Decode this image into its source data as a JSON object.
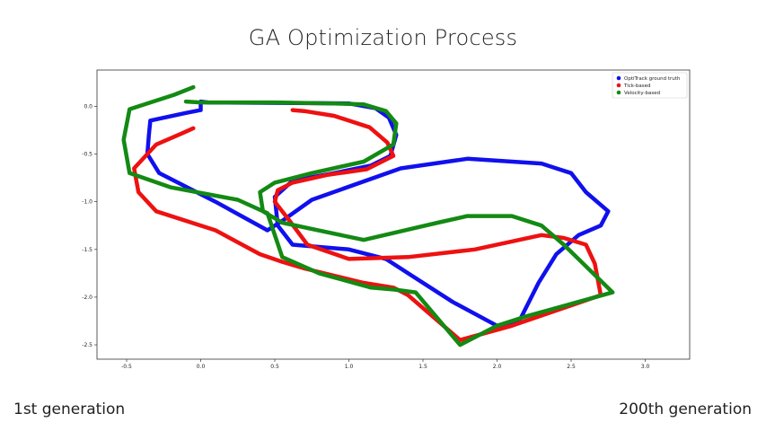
{
  "page": {
    "title": "GA Optimization Process",
    "left_caption": "1st generation",
    "right_caption": "200th generation"
  },
  "chart_data": {
    "type": "line",
    "title": "",
    "xlabel": "",
    "ylabel": "",
    "xlim": [
      -0.7,
      3.3
    ],
    "ylim": [
      -2.65,
      0.38
    ],
    "xticks": [
      -0.5,
      0.0,
      0.5,
      1.0,
      1.5,
      2.0,
      2.5,
      3.0
    ],
    "yticks": [
      0.0,
      -0.5,
      -1.0,
      -1.5,
      -2.0,
      -2.5
    ],
    "grid": false,
    "legend_position": "top-right",
    "series": [
      {
        "name": "OptiTrack ground truth",
        "color": "#1010ee",
        "x": [
          0.0,
          0.05,
          1.0,
          1.18,
          1.27,
          1.32,
          1.28,
          1.15,
          0.9,
          0.62,
          0.5,
          0.52,
          0.62,
          1.0,
          1.25,
          1.4,
          1.7,
          2.0,
          2.15,
          2.28,
          2.4,
          2.55,
          2.7,
          2.75,
          2.6,
          2.5,
          2.4,
          2.3,
          1.8,
          1.35,
          0.75,
          0.55,
          0.45,
          0.1,
          -0.28,
          -0.36,
          -0.35,
          -0.34,
          -0.1,
          0.0,
          0.0
        ],
        "y": [
          0.05,
          0.04,
          0.03,
          -0.02,
          -0.12,
          -0.3,
          -0.52,
          -0.62,
          -0.7,
          -0.78,
          -0.95,
          -1.25,
          -1.45,
          -1.5,
          -1.6,
          -1.75,
          -2.05,
          -2.3,
          -2.25,
          -1.85,
          -1.55,
          -1.35,
          -1.25,
          -1.1,
          -0.9,
          -0.7,
          -0.65,
          -0.6,
          -0.55,
          -0.65,
          -0.98,
          -1.2,
          -1.3,
          -1.0,
          -0.7,
          -0.5,
          -0.3,
          -0.15,
          -0.07,
          -0.04,
          0.05
        ]
      },
      {
        "name": "Tick-based",
        "color": "#ee1111",
        "x": [
          -0.05,
          -0.12,
          -0.3,
          -0.45,
          -0.42,
          -0.3,
          0.1,
          0.4,
          0.55,
          0.7,
          1.1,
          1.3,
          1.4,
          1.75,
          2.1,
          2.7,
          2.66,
          2.6,
          2.45,
          2.3,
          1.85,
          1.4,
          1.0,
          0.72,
          0.6,
          0.5,
          0.52,
          0.62,
          0.85,
          1.12,
          1.3,
          1.26,
          1.14,
          0.9,
          0.7,
          0.62
        ],
        "y": [
          -0.23,
          -0.28,
          -0.4,
          -0.65,
          -0.9,
          -1.1,
          -1.3,
          -1.55,
          -1.63,
          -1.7,
          -1.85,
          -1.9,
          -1.98,
          -2.45,
          -2.3,
          -1.98,
          -1.65,
          -1.45,
          -1.38,
          -1.35,
          -1.5,
          -1.58,
          -1.6,
          -1.45,
          -1.2,
          -1.0,
          -0.88,
          -0.8,
          -0.72,
          -0.66,
          -0.52,
          -0.38,
          -0.22,
          -0.1,
          -0.05,
          -0.04
        ]
      },
      {
        "name": "Velocity-based",
        "color": "#138a13",
        "x": [
          -0.05,
          -0.18,
          -0.48,
          -0.52,
          -0.48,
          -0.2,
          0.25,
          0.45,
          0.55,
          0.8,
          1.15,
          1.3,
          1.45,
          1.75,
          2.0,
          2.2,
          2.78,
          2.45,
          2.3,
          2.1,
          1.8,
          1.6,
          1.1,
          0.55,
          0.42,
          0.4,
          0.5,
          0.75,
          1.1,
          1.3,
          1.32,
          1.25,
          1.1,
          0.9,
          0.5,
          0.0,
          -0.1
        ],
        "y": [
          0.2,
          0.12,
          -0.03,
          -0.35,
          -0.7,
          -0.85,
          -0.98,
          -1.12,
          -1.58,
          -1.75,
          -1.9,
          -1.92,
          -1.95,
          -2.5,
          -2.3,
          -2.2,
          -1.95,
          -1.45,
          -1.25,
          -1.15,
          -1.15,
          -1.22,
          -1.4,
          -1.22,
          -1.1,
          -0.9,
          -0.8,
          -0.7,
          -0.58,
          -0.4,
          -0.18,
          -0.05,
          0.02,
          0.03,
          0.04,
          0.04,
          0.05
        ]
      }
    ]
  }
}
